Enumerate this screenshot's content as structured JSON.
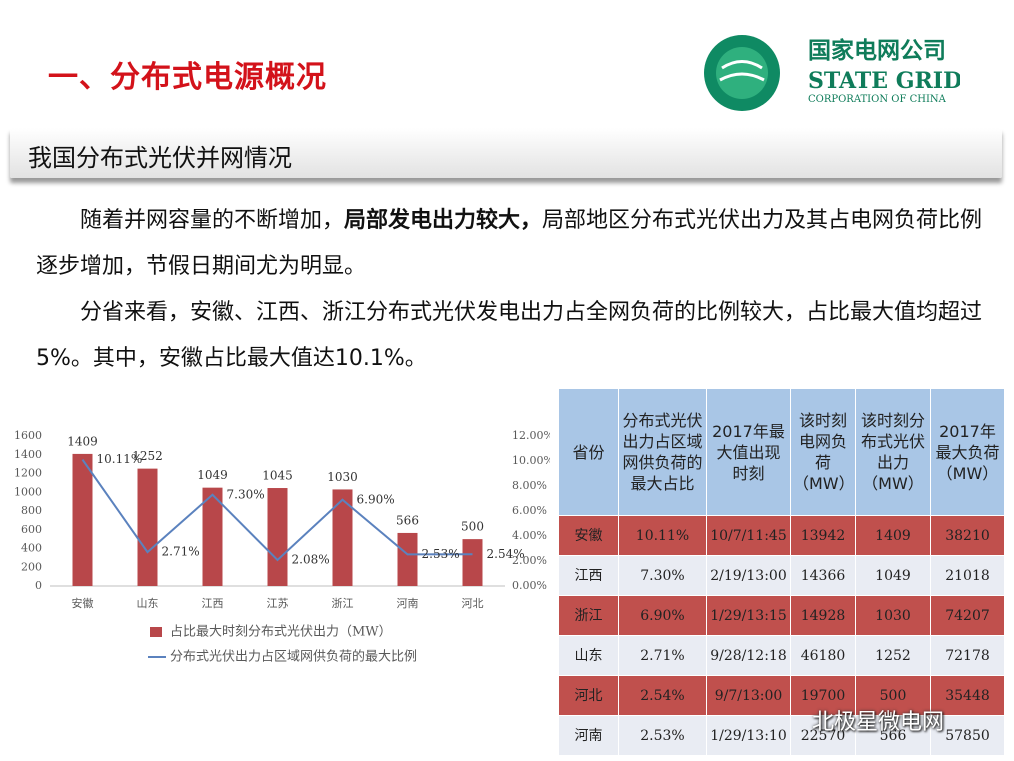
{
  "header": {
    "title": "一、分布式电源概况",
    "logo_cn": "国家电网公司",
    "logo_en": "STATE GRID",
    "logo_sub": "CORPORATION OF CHINA"
  },
  "section_title": "我国分布式光伏并网情况",
  "paragraphs": [
    [
      "随着并网容量的不断增加，",
      "局部发电出力较大，",
      "局部地区分布式光伏出力及其占电网负荷比例逐步增加，节假日期间尤为明显。"
    ],
    [
      "分省来看，安徽、江西、浙江分布式光伏发电出力占全网负荷的比例较大，占比最大值均超过5%。其中，安徽占比最大值达10.1%。"
    ]
  ],
  "chart_data": {
    "type": "bar",
    "categories": [
      "安徽",
      "山东",
      "江西",
      "江苏",
      "浙江",
      "河南",
      "河北"
    ],
    "series": [
      {
        "name": "占比最大时刻分布式光伏出力（MW）",
        "type": "bar",
        "color": "#b8474a",
        "values": [
          1409,
          1252,
          1049,
          1045,
          1030,
          566,
          500
        ]
      },
      {
        "name": "分布式光伏出力占区域网供负荷的最大比例",
        "type": "line",
        "axis": "y2",
        "color": "#5b82be",
        "values": [
          10.11,
          2.71,
          7.3,
          2.08,
          6.9,
          2.53,
          2.54
        ],
        "value_labels": [
          "10.11%",
          "2.71%",
          "7.30%",
          "2.08%",
          "6.90%",
          "2.53%",
          "2.54%"
        ]
      }
    ],
    "ylim": [
      0,
      1600
    ],
    "yticks": [
      0,
      200,
      400,
      600,
      800,
      1000,
      1200,
      1400,
      1600
    ],
    "y2lim": [
      0,
      12
    ],
    "y2ticks": [
      {
        "value": 0,
        "label": "0.00%"
      },
      {
        "value": 2,
        "label": "2.00%"
      },
      {
        "value": 4,
        "label": "4.00%"
      },
      {
        "value": 6,
        "label": "6.00%"
      },
      {
        "value": 8,
        "label": "8.00%"
      },
      {
        "value": 10,
        "label": "10.00%"
      },
      {
        "value": 12,
        "label": "12.00%"
      }
    ],
    "grid": false,
    "legend": "bottom"
  },
  "table": {
    "header": [
      "省份",
      "分布式光伏出力占区域网供负荷的最大占比",
      "2017年最大值出现时刻",
      "该时刻电网负荷（MW）",
      "该时刻分布式光伏出力（MW）",
      "2017年最大负荷（MW）"
    ],
    "rows": [
      [
        "安徽",
        "10.11%",
        "10/7/11:45",
        "13942",
        "1409",
        "38210"
      ],
      [
        "江西",
        "7.30%",
        "2/19/13:00",
        "14366",
        "1049",
        "21018"
      ],
      [
        "浙江",
        "6.90%",
        "1/29/13:15",
        "14928",
        "1030",
        "74207"
      ],
      [
        "山东",
        "2.71%",
        "9/28/12:18",
        "46180",
        "1252",
        "72178"
      ],
      [
        "河北",
        "2.54%",
        "9/7/13:00",
        "19700",
        "500",
        "35448"
      ],
      [
        "河南",
        "2.53%",
        "1/29/13:10",
        "22570",
        "566",
        "57850"
      ]
    ]
  },
  "watermark": "北极星微电网"
}
